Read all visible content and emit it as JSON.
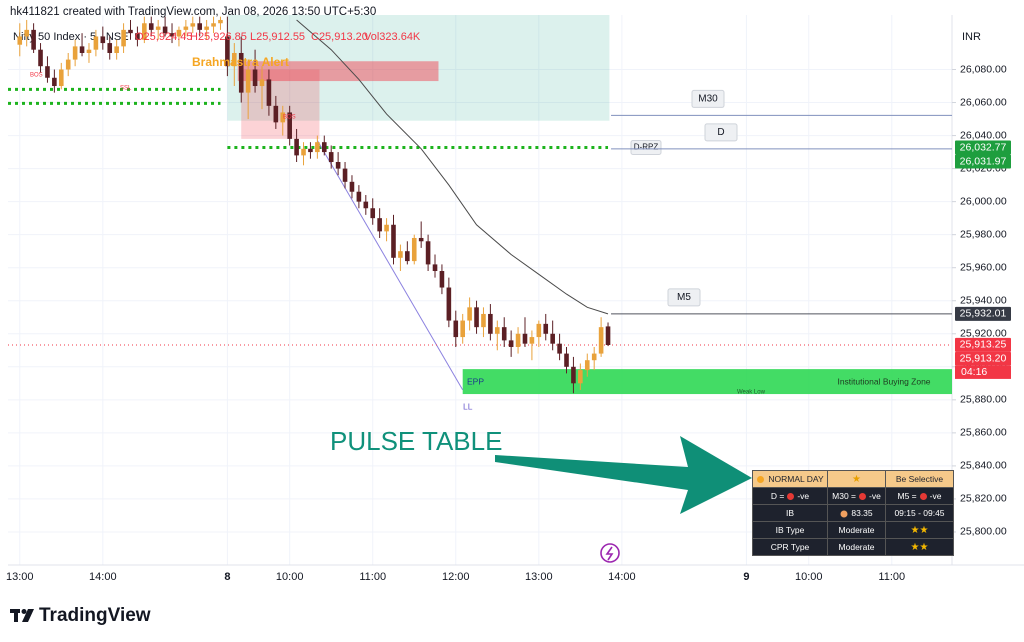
{
  "header": "hk411821 created with TradingView.com, Jan 08, 2026 13:50 UTC+5:30",
  "footer": "TradingView",
  "annotation": "PULSE TABLE",
  "chart_data": {
    "type": "candlestick",
    "title": "Nifty 50 Index · 5 · NSE",
    "legend_values": [
      "O25,924.45",
      "H25,926.85",
      "L25,912.55",
      "C25,913.20",
      "Vol323.64K"
    ],
    "currency": "INR",
    "up_color": "#e9a23b",
    "down_color": "#5b1f24",
    "open": [
      26095,
      26100,
      26104,
      26092,
      26082,
      26075,
      26070,
      26080,
      26086,
      26094,
      26090,
      26092,
      26100,
      26096,
      26090,
      26094,
      26104,
      26102,
      26098,
      26108,
      26104,
      26106,
      26102,
      26100,
      26104,
      26106,
      26108,
      26104,
      26106,
      26108,
      26100,
      26082,
      26090,
      26066,
      26080,
      26070,
      26074,
      26058,
      26048,
      26054,
      26038,
      26028,
      26032,
      26030,
      26036,
      26030,
      26024,
      26020,
      26012,
      26006,
      26000,
      25996,
      25990,
      25982,
      25986,
      25966,
      25970,
      25964,
      25978,
      25976,
      25962,
      25958,
      25948,
      25928,
      25918,
      25928,
      25936,
      25924,
      25932,
      25920,
      25924,
      25916,
      25912,
      25920,
      25914,
      25918,
      25926,
      25920,
      25914,
      25908,
      25900,
      25890,
      25898,
      25904,
      25908,
      25924.45
    ],
    "high": [
      26108,
      26110,
      26108,
      26096,
      26088,
      26080,
      26084,
      26090,
      26098,
      26102,
      26096,
      26104,
      26106,
      26100,
      26098,
      26108,
      26110,
      26106,
      26112,
      26112,
      26110,
      26112,
      26108,
      26106,
      26110,
      26112,
      26112,
      26110,
      26112,
      26112,
      26112,
      26096,
      26100,
      26086,
      26092,
      26082,
      26080,
      26064,
      26058,
      26058,
      26044,
      26036,
      26036,
      26040,
      26040,
      26034,
      26030,
      26024,
      26016,
      26010,
      26004,
      26002,
      25996,
      25990,
      25992,
      25974,
      25976,
      25980,
      25988,
      25980,
      25968,
      25962,
      25954,
      25934,
      25932,
      25942,
      25940,
      25936,
      25938,
      25928,
      25930,
      25922,
      25924,
      25930,
      25922,
      25928,
      25932,
      25928,
      25920,
      25912,
      25906,
      25902,
      25908,
      25912,
      25930,
      25926.85
    ],
    "low": [
      26088,
      26094,
      26090,
      26078,
      26072,
      26066,
      26068,
      26076,
      26082,
      26088,
      26084,
      26088,
      26092,
      26086,
      26086,
      26090,
      26098,
      26094,
      26096,
      26100,
      26098,
      26100,
      26096,
      26094,
      26100,
      26102,
      26100,
      26098,
      26102,
      26104,
      26076,
      26070,
      26060,
      26050,
      26066,
      26056,
      26052,
      26044,
      26040,
      26034,
      26024,
      26022,
      26026,
      26026,
      26028,
      26020,
      26016,
      26008,
      26002,
      25996,
      25992,
      25986,
      25978,
      25976,
      25962,
      25958,
      25962,
      25962,
      25972,
      25958,
      25954,
      25944,
      25924,
      25912,
      25914,
      25922,
      25920,
      25918,
      25916,
      25910,
      25912,
      25906,
      25908,
      25912,
      25904,
      25912,
      25916,
      25910,
      25904,
      25896,
      25884,
      25886,
      25894,
      25898,
      25906,
      25912.55
    ],
    "close": [
      26100,
      26104,
      26092,
      26082,
      26075,
      26070,
      26080,
      26086,
      26094,
      26090,
      26092,
      26100,
      26096,
      26090,
      26094,
      26104,
      26102,
      26098,
      26108,
      26104,
      26106,
      26102,
      26100,
      26104,
      26106,
      26108,
      26104,
      26106,
      26108,
      26110,
      26082,
      26090,
      26066,
      26080,
      26070,
      26074,
      26058,
      26048,
      26054,
      26038,
      26028,
      26032,
      26030,
      26036,
      26030,
      26024,
      26020,
      26012,
      26006,
      26000,
      25996,
      25990,
      25982,
      25986,
      25966,
      25970,
      25964,
      25978,
      25976,
      25962,
      25958,
      25948,
      25928,
      25918,
      25928,
      25936,
      25924,
      25932,
      25920,
      25924,
      25916,
      25912,
      25920,
      25914,
      25918,
      25926,
      25920,
      25914,
      25908,
      25900,
      25890,
      25898,
      25904,
      25908,
      25924,
      25913.2
    ],
    "xlim": [
      -1.7,
      134.7
    ],
    "ylim": [
      25780,
      26113
    ],
    "yticks": [
      {
        "value": 25800,
        "label": "25,800.00"
      },
      {
        "value": 25820,
        "label": "25,820.00"
      },
      {
        "value": 25840,
        "label": "25,840.00"
      },
      {
        "value": 25860,
        "label": "25,860.00"
      },
      {
        "value": 25880,
        "label": "25,880.00"
      },
      {
        "value": 25900,
        "label": "25,900.00"
      },
      {
        "value": 25920,
        "label": "25,920.00"
      },
      {
        "value": 25940,
        "label": "25,940.00"
      },
      {
        "value": 25960,
        "label": "25,960.00"
      },
      {
        "value": 25980,
        "label": "25,980.00"
      },
      {
        "value": 26000,
        "label": "26,000.00"
      },
      {
        "value": 26020,
        "label": "26,020.00"
      },
      {
        "value": 26040,
        "label": "26,040.00"
      },
      {
        "value": 26060,
        "label": "26,060.00"
      },
      {
        "value": 26080,
        "label": "26,080.00"
      }
    ],
    "xticks": [
      {
        "value": 0,
        "label": "13:00"
      },
      {
        "value": 12,
        "label": "14:00"
      },
      {
        "value": 30,
        "label": "8"
      },
      {
        "value": 39,
        "label": "10:00"
      },
      {
        "value": 51,
        "label": "11:00"
      },
      {
        "value": 63,
        "label": "12:00"
      },
      {
        "value": 75,
        "label": "13:00"
      },
      {
        "value": 87,
        "label": "14:00"
      },
      {
        "value": 105,
        "label": "9"
      },
      {
        "value": 114,
        "label": "10:00"
      },
      {
        "value": 126,
        "label": "11:00"
      }
    ],
    "grid": true,
    "ma": {
      "color": "#4a4a4a",
      "x": [
        40,
        45,
        49,
        53,
        58,
        62,
        66,
        71,
        75,
        79,
        82,
        85
      ],
      "values": [
        26110,
        26092,
        26074,
        26053,
        26032,
        26010,
        25986,
        25968,
        25956,
        25944,
        25936,
        25932.01
      ]
    },
    "trendline": {
      "color": "#8c82e0",
      "x": [
        43,
        64
      ],
      "values": [
        26037,
        25886
      ]
    },
    "zones": [
      {
        "from": 30,
        "to": 85.2,
        "low": 26049,
        "high": 26113,
        "color": "rgba(8,153,129,0.14)"
      },
      {
        "from": 32,
        "to": 43.3,
        "low": 26038,
        "high": 26080,
        "color": "rgba(242,54,69,0.22)"
      },
      {
        "from": 31.5,
        "to": 60.5,
        "low": 26073,
        "high": 26085,
        "color": "rgba(242,54,69,0.45)"
      },
      {
        "from": 64,
        "to": 134.7,
        "low": 25883.5,
        "high": 25898.6,
        "color": "rgba(34,214,74,0.85)"
      }
    ],
    "levels": [
      {
        "label": "M30",
        "value": 26052.2,
        "color": "#8190bd"
      },
      {
        "label": "D",
        "value": 26031.97,
        "color": "#8190bd"
      },
      {
        "label": "M5",
        "value": 25932.01,
        "color": "#50535e"
      }
    ],
    "dotted_levels": [
      {
        "label": "D-RPZ",
        "value": 26032.77,
        "from": 30,
        "to": 85,
        "color": "#1db31d"
      },
      {
        "value": 26068,
        "from": -1.7,
        "to": 29,
        "color": "#1db31d"
      },
      {
        "value": 26059.5,
        "from": -1.7,
        "to": 29,
        "color": "#1db31d"
      }
    ],
    "price_line_color": "#f23645",
    "price_labels": [
      {
        "value": 26032.77,
        "label": "26,032.77",
        "color": "#1e9e3e"
      },
      {
        "value": 26031.97,
        "label": "26,031.97",
        "color": "#1e9e3e"
      },
      {
        "value": 25932.01,
        "label": "25,932.01",
        "color": "#363a45"
      },
      {
        "value": 25913.25,
        "label": "25,913.25",
        "color": "#f23645"
      },
      {
        "value": 25913.2,
        "label": "25,913.20",
        "color": "#f23645"
      }
    ],
    "countdown": "04:16",
    "annotations": [
      "BOS",
      "SSL",
      "BOS",
      "Brahmastra Alert",
      "EPP",
      "LL",
      "Weak Low",
      "Institutional Buying Zone"
    ]
  },
  "pulse_table": {
    "rows": [
      [
        "NORMAL DAY",
        "★",
        "Be Selective"
      ],
      [
        {
          "pre": "D =",
          "post": "-ve"
        },
        {
          "pre": "M30 =",
          "post": "-ve"
        },
        {
          "pre": "M5 =",
          "post": "-ve"
        }
      ],
      [
        "IB",
        83.35,
        "09:15 - 09:45"
      ],
      [
        "IB Type",
        "Moderate",
        "★★"
      ],
      [
        "CPR Type",
        "Moderate",
        "★★"
      ]
    ]
  }
}
